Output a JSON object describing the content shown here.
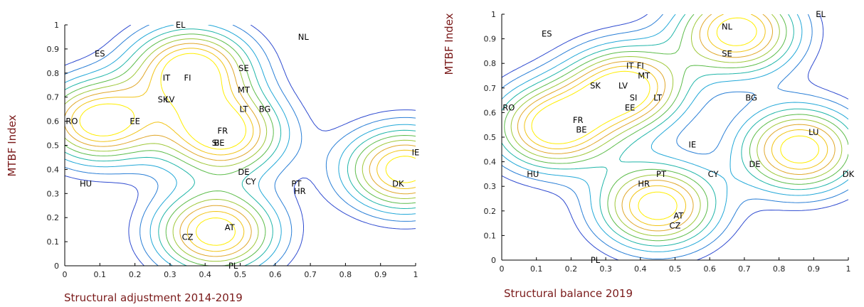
{
  "chart_data": [
    {
      "type": "contour",
      "xlabel": "Structural adjustment 2014-2019",
      "ylabel": "MTBF Index",
      "xlim": [
        0,
        1
      ],
      "ylim": [
        0,
        1
      ],
      "xticks": [
        0,
        0.1,
        0.2,
        0.3,
        0.4,
        0.5,
        0.6,
        0.7,
        0.8,
        0.9,
        1
      ],
      "yticks": [
        0,
        0.1,
        0.2,
        0.3,
        0.4,
        0.5,
        0.6,
        0.7,
        0.8,
        0.9,
        1
      ],
      "tick_labels": [
        "0",
        "0.1",
        "0.2",
        "0.3",
        "0.4",
        "0.5",
        "0.6",
        "0.7",
        "0.8",
        "0.9",
        "1"
      ],
      "grid": false,
      "peaks": [
        {
          "x": 0.36,
          "y": 0.82
        },
        {
          "x": 0.1,
          "y": 0.6
        },
        {
          "x": 0.45,
          "y": 0.55
        },
        {
          "x": 0.43,
          "y": 0.14
        },
        {
          "x": 0.97,
          "y": 0.4
        }
      ],
      "points": [
        {
          "label": "EL",
          "x": 0.33,
          "y": 1.0
        },
        {
          "label": "NL",
          "x": 0.68,
          "y": 0.95
        },
        {
          "label": "ES",
          "x": 0.1,
          "y": 0.88
        },
        {
          "label": "IT",
          "x": 0.29,
          "y": 0.78
        },
        {
          "label": "FI",
          "x": 0.35,
          "y": 0.78
        },
        {
          "label": "SE",
          "x": 0.51,
          "y": 0.82
        },
        {
          "label": "MT",
          "x": 0.51,
          "y": 0.73
        },
        {
          "label": "SK",
          "x": 0.28,
          "y": 0.69
        },
        {
          "label": "LV",
          "x": 0.3,
          "y": 0.69
        },
        {
          "label": "RO",
          "x": 0.02,
          "y": 0.6
        },
        {
          "label": "EE",
          "x": 0.2,
          "y": 0.6
        },
        {
          "label": "LT",
          "x": 0.51,
          "y": 0.65
        },
        {
          "label": "BG",
          "x": 0.57,
          "y": 0.65
        },
        {
          "label": "FR",
          "x": 0.45,
          "y": 0.56
        },
        {
          "label": "BE",
          "x": 0.44,
          "y": 0.51
        },
        {
          "label": "SI",
          "x": 0.43,
          "y": 0.51
        },
        {
          "label": "IE",
          "x": 1.0,
          "y": 0.47
        },
        {
          "label": "DE",
          "x": 0.51,
          "y": 0.39
        },
        {
          "label": "CY",
          "x": 0.53,
          "y": 0.35
        },
        {
          "label": "HU",
          "x": 0.06,
          "y": 0.34
        },
        {
          "label": "PT",
          "x": 0.66,
          "y": 0.34
        },
        {
          "label": "HR",
          "x": 0.67,
          "y": 0.31
        },
        {
          "label": "DK",
          "x": 0.95,
          "y": 0.34
        },
        {
          "label": "AT",
          "x": 0.47,
          "y": 0.16
        },
        {
          "label": "CZ",
          "x": 0.35,
          "y": 0.12
        },
        {
          "label": "PL",
          "x": 0.48,
          "y": 0.0
        }
      ]
    },
    {
      "type": "contour",
      "xlabel": "Structural balance 2019",
      "ylabel": "MTBF Index",
      "xlim": [
        0,
        1
      ],
      "ylim": [
        0,
        1
      ],
      "xticks": [
        0,
        0.1,
        0.2,
        0.3,
        0.4,
        0.5,
        0.6,
        0.7,
        0.8,
        0.9,
        1
      ],
      "yticks": [
        0,
        0.1,
        0.2,
        0.3,
        0.4,
        0.5,
        0.6,
        0.7,
        0.8,
        0.9,
        1
      ],
      "tick_labels": [
        "0",
        "0.1",
        "0.2",
        "0.3",
        "0.4",
        "0.5",
        "0.6",
        "0.7",
        "0.8",
        "0.9",
        "1"
      ],
      "grid": false,
      "peaks": [
        {
          "x": 0.86,
          "y": 0.45
        },
        {
          "x": 0.15,
          "y": 0.54
        },
        {
          "x": 0.36,
          "y": 0.7
        },
        {
          "x": 0.45,
          "y": 0.22
        },
        {
          "x": 0.68,
          "y": 0.93
        }
      ],
      "points": [
        {
          "label": "EL",
          "x": 0.92,
          "y": 1.0
        },
        {
          "label": "NL",
          "x": 0.65,
          "y": 0.95
        },
        {
          "label": "ES",
          "x": 0.13,
          "y": 0.92
        },
        {
          "label": "SE",
          "x": 0.65,
          "y": 0.84
        },
        {
          "label": "IT",
          "x": 0.37,
          "y": 0.79
        },
        {
          "label": "FI",
          "x": 0.4,
          "y": 0.79
        },
        {
          "label": "MT",
          "x": 0.41,
          "y": 0.75
        },
        {
          "label": "SK",
          "x": 0.27,
          "y": 0.71
        },
        {
          "label": "LV",
          "x": 0.35,
          "y": 0.71
        },
        {
          "label": "SI",
          "x": 0.38,
          "y": 0.66
        },
        {
          "label": "LT",
          "x": 0.45,
          "y": 0.66
        },
        {
          "label": "EE",
          "x": 0.37,
          "y": 0.62
        },
        {
          "label": "BG",
          "x": 0.72,
          "y": 0.66
        },
        {
          "label": "RO",
          "x": 0.02,
          "y": 0.62
        },
        {
          "label": "FR",
          "x": 0.22,
          "y": 0.57
        },
        {
          "label": "BE",
          "x": 0.23,
          "y": 0.53
        },
        {
          "label": "IE",
          "x": 0.55,
          "y": 0.47
        },
        {
          "label": "LU",
          "x": 0.9,
          "y": 0.52
        },
        {
          "label": "DE",
          "x": 0.73,
          "y": 0.39
        },
        {
          "label": "CY",
          "x": 0.61,
          "y": 0.35
        },
        {
          "label": "HU",
          "x": 0.09,
          "y": 0.35
        },
        {
          "label": "PT",
          "x": 0.46,
          "y": 0.35
        },
        {
          "label": "HR",
          "x": 0.41,
          "y": 0.31
        },
        {
          "label": "DK",
          "x": 1.0,
          "y": 0.35
        },
        {
          "label": "AT",
          "x": 0.51,
          "y": 0.18
        },
        {
          "label": "CZ",
          "x": 0.5,
          "y": 0.14
        },
        {
          "label": "PL",
          "x": 0.27,
          "y": 0.0
        }
      ]
    }
  ],
  "colors": {
    "axis": "#000000",
    "label_text": "#7a1a1a",
    "contour_palette": [
      "#2b2fa0",
      "#2f4bd0",
      "#2a7fd6",
      "#22a8d8",
      "#1fb5a8",
      "#5cbc4a",
      "#9fc83a",
      "#e0a72a",
      "#f1c416",
      "#ffee00"
    ]
  }
}
